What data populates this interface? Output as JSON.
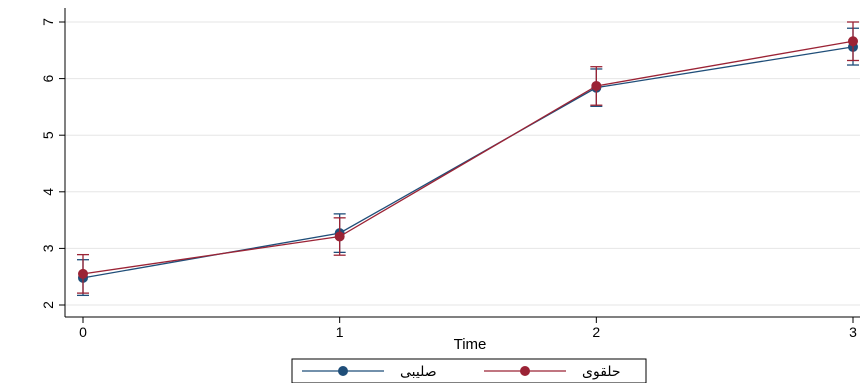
{
  "chart_data": {
    "type": "line",
    "title": "",
    "xlabel": "Time",
    "ylabel": "",
    "x": [
      0,
      1,
      2,
      3
    ],
    "xlim": [
      0,
      3
    ],
    "ylim": [
      2,
      7
    ],
    "x_ticks": [
      "0",
      "1",
      "2",
      "3"
    ],
    "y_ticks": [
      "2",
      "3",
      "4",
      "5",
      "6",
      "7"
    ],
    "grid": true,
    "legend_position": "bottom",
    "error_bars": true,
    "series": [
      {
        "name": "صلیبی",
        "color": "#1f4e79",
        "values": [
          2.48,
          3.27,
          5.84,
          6.56
        ],
        "lower": [
          2.17,
          2.93,
          5.51,
          6.24
        ],
        "upper": [
          2.8,
          3.61,
          6.17,
          6.89
        ]
      },
      {
        "name": "حلقوی",
        "color": "#9b2335",
        "values": [
          2.55,
          3.21,
          5.87,
          6.66
        ],
        "lower": [
          2.21,
          2.88,
          5.53,
          6.32
        ],
        "upper": [
          2.89,
          3.54,
          6.21,
          7.0
        ]
      }
    ]
  }
}
